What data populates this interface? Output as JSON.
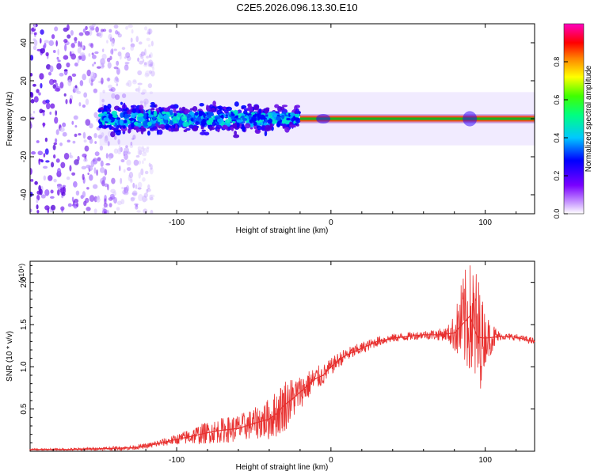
{
  "title": "C2E5.2026.096.13.30.E10",
  "colors": {
    "line": "#e8302f",
    "axis": "#000000",
    "spectrogram_band": "#ff2a00",
    "spectrogram_core": "#00c000",
    "spectrogram_low": "#6a10e6"
  },
  "chart_data": [
    {
      "type": "heatmap",
      "title": "",
      "xlabel": "Height of straight line (km)",
      "ylabel": "Frequency (Hz)",
      "xlim": [
        -195,
        132
      ],
      "ylim": [
        -50,
        50
      ],
      "xticks": [
        -100,
        0,
        100
      ],
      "xtick_labels": [
        "-100",
        "0",
        "100"
      ],
      "yticks": [
        40,
        20,
        0,
        -20,
        -40
      ],
      "ytick_labels": [
        "40",
        "20",
        "0",
        "-20",
        "-40"
      ],
      "colorbar": {
        "label": "Normalized spectral amplitude",
        "range": [
          0,
          1
        ],
        "ticks": [
          0.0,
          0.2,
          0.4,
          0.6,
          0.8
        ],
        "tick_labels": [
          "0.0",
          "0.2",
          "0.4",
          "0.6",
          "0.8"
        ],
        "colormap": "rainbow"
      },
      "features": {
        "band_center_hz": 0,
        "band_extent_km": [
          -20,
          132
        ],
        "scatter_extent_km": [
          -195,
          -115
        ],
        "cloud_extent_km": [
          -150,
          -20
        ],
        "cloud_halfwidth_hz": 10
      }
    },
    {
      "type": "line",
      "title": "",
      "xlabel": "Height of straight line (km)",
      "ylabel": "SNR (10 * v/v)",
      "y_scale_label": "(x10⁴)",
      "xlim": [
        -195,
        132
      ],
      "ylim": [
        0,
        2.25
      ],
      "xticks": [
        -100,
        0,
        100
      ],
      "xtick_labels": [
        "-100",
        "0",
        "100"
      ],
      "yticks": [
        0.5,
        1.0,
        1.5,
        2.0
      ],
      "ytick_labels": [
        "0.5",
        "1.0",
        "1.5",
        "2.0"
      ],
      "series": [
        {
          "name": "SNR",
          "x": [
            -195,
            -170,
            -150,
            -130,
            -120,
            -110,
            -100,
            -90,
            -80,
            -70,
            -60,
            -50,
            -40,
            -35,
            -30,
            -25,
            -20,
            -15,
            -10,
            -5,
            0,
            5,
            10,
            15,
            20,
            25,
            30,
            40,
            50,
            60,
            70,
            80,
            85,
            90,
            95,
            100,
            105,
            110,
            120,
            132
          ],
          "values": [
            0.02,
            0.02,
            0.03,
            0.04,
            0.06,
            0.1,
            0.14,
            0.18,
            0.22,
            0.25,
            0.27,
            0.33,
            0.38,
            0.45,
            0.55,
            0.62,
            0.7,
            0.78,
            0.86,
            0.9,
            1.0,
            1.08,
            1.14,
            1.18,
            1.22,
            1.26,
            1.3,
            1.34,
            1.36,
            1.38,
            1.38,
            1.4,
            1.5,
            1.6,
            1.35,
            1.34,
            1.35,
            1.36,
            1.35,
            1.3
          ]
        }
      ],
      "noise_envelope": {
        "x": [
          -195,
          -150,
          -120,
          -100,
          -85,
          -70,
          -50,
          -40,
          -30,
          -20,
          -10,
          0,
          20,
          40,
          60,
          75,
          80,
          85,
          90,
          95,
          100,
          110,
          132
        ],
        "amp": [
          0.01,
          0.02,
          0.03,
          0.06,
          0.12,
          0.15,
          0.18,
          0.25,
          0.32,
          0.2,
          0.15,
          0.1,
          0.07,
          0.05,
          0.05,
          0.08,
          0.22,
          0.55,
          0.7,
          0.8,
          0.3,
          0.04,
          0.04
        ]
      }
    }
  ]
}
